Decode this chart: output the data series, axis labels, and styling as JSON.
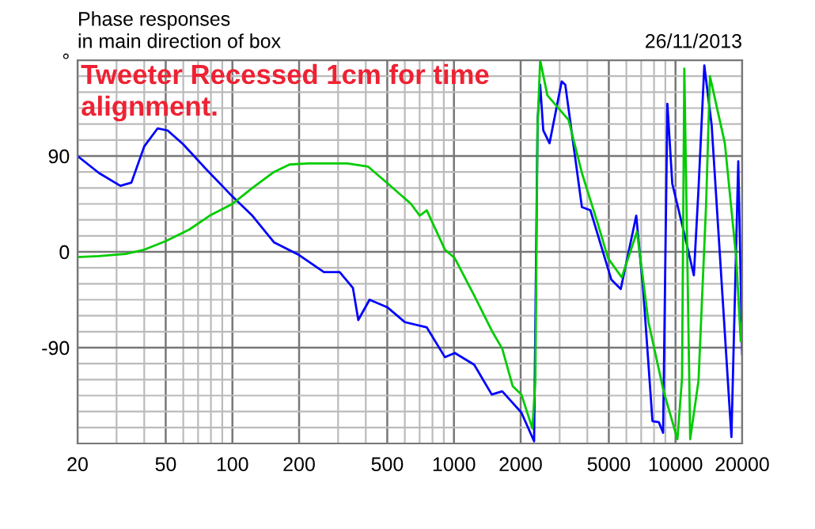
{
  "chart_data": {
    "type": "line",
    "title": "Phase responses",
    "subtitle": "in main direction of box",
    "annotations": [
      "26/11/2013",
      "Tweeter Recessed 1cm for time alignment."
    ],
    "log": "x",
    "xlim": [
      20,
      20000
    ],
    "xticks": [
      20,
      50,
      100,
      200,
      500,
      1000,
      2000,
      5000,
      10000,
      20000
    ],
    "ylim": [
      -180,
      180
    ],
    "yticks": [
      {
        "value": 180,
        "label": "°"
      },
      90,
      0,
      -90
    ],
    "grid": true,
    "marker": "none",
    "line_style": "solid",
    "series": [
      {
        "color": "#0000ff",
        "x": [
          20,
          25,
          31.2,
          35,
          40,
          46,
          51,
          60,
          75,
          100,
          123,
          154,
          200,
          259,
          305,
          350,
          370,
          416,
          500,
          600,
          754,
          911,
          1009,
          1234,
          1481,
          1652,
          2016,
          2300,
          2385,
          2450,
          2530,
          2700,
          3064,
          3180,
          3780,
          4130,
          5130,
          5660,
          6650,
          7150,
          7870,
          8410,
          8790,
          9190,
          9670,
          10960,
          12100,
          12700,
          13490,
          14560,
          16290,
          17880,
          19200,
          20000
        ],
        "values": [
          90,
          74,
          62,
          65,
          99,
          116,
          114,
          101,
          79,
          52,
          34,
          9,
          -3,
          -19,
          -19,
          -34,
          -64,
          -45,
          -52,
          -66,
          -71,
          -99,
          -95,
          -106,
          -134,
          -131,
          -151,
          -178,
          124,
          157,
          114,
          102,
          160,
          157,
          42,
          39,
          -26,
          -35,
          34,
          -36,
          -159,
          -160,
          -170,
          139,
          64,
          17,
          -22,
          59,
          175,
          119,
          -41,
          -174,
          85,
          -96
        ]
      },
      {
        "color": "#00cc00",
        "x": [
          20,
          25,
          33,
          40,
          50,
          64,
          79,
          100,
          123,
          154,
          181,
          220,
          330,
          410,
          510,
          640,
          700,
          754,
          911,
          1009,
          1234,
          1481,
          1652,
          1840,
          2016,
          2260,
          2330,
          2385,
          2450,
          2640,
          3290,
          3780,
          4450,
          4960,
          5720,
          6700,
          7550,
          8840,
          10200,
          10700,
          10960,
          11650,
          12700,
          13740,
          14300,
          16700,
          18800,
          19700,
          20000
        ],
        "values": [
          -5,
          -4,
          -2,
          2,
          10,
          21,
          34,
          45,
          60,
          75,
          82,
          83,
          83,
          80,
          63,
          45,
          34,
          39,
          2,
          -6,
          -41,
          -74,
          -91,
          -126,
          -134,
          -166,
          -121,
          119,
          180,
          147,
          124,
          74,
          27,
          -6,
          -24,
          19,
          -66,
          -131,
          -176,
          -119,
          172,
          -176,
          -121,
          44,
          165,
          102,
          -6,
          -84,
          -66
        ]
      }
    ]
  }
}
